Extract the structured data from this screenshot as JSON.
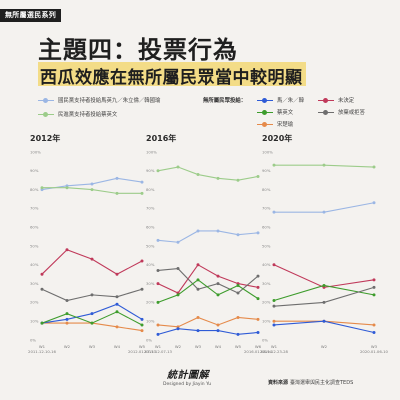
{
  "header": {
    "series_tag": "無所屬選民系列",
    "title": "主題四：投票行為",
    "subtitle": "西瓜效應在無所屬民眾當中較明顯"
  },
  "legend": {
    "left": [
      {
        "label": "國民黨支持者投給馬英九／朱立倫／韓國瑜",
        "color": "#9bb6e4"
      },
      {
        "label": "民進黨支持者投給蔡英文",
        "color": "#9ccc8a"
      }
    ],
    "right_title": "無所屬民眾投給：",
    "right": [
      {
        "label": "馬／朱／韓",
        "color": "#2f5bd6"
      },
      {
        "label": "未決定",
        "color": "#c0395a"
      },
      {
        "label": "蔡英文",
        "color": "#3d9c2c"
      },
      {
        "label": "放棄或拒答",
        "color": "#6e6e6e"
      },
      {
        "label": "宋楚瑜",
        "color": "#e58a4a"
      }
    ]
  },
  "chart_data": [
    {
      "type": "line",
      "title": "2012年",
      "x": [
        "W1",
        "W2",
        "W3",
        "W4",
        "W5"
      ],
      "x_sublabels": [
        "2011.12.10-16",
        "",
        "",
        "",
        "2012.01.07-13"
      ],
      "ylim": [
        0,
        100
      ],
      "yticks": [
        "0%",
        "10%",
        "20%",
        "30%",
        "40%",
        "50%",
        "60%",
        "70%",
        "80%",
        "90%",
        "100%"
      ],
      "grid": false,
      "series": [
        {
          "name": "國民黨支持者投給馬英九／朱立倫／韓國瑜",
          "color": "#9bb6e4",
          "values": [
            80,
            82,
            83,
            86,
            84
          ]
        },
        {
          "name": "民進黨支持者投給蔡英文",
          "color": "#9ccc8a",
          "values": [
            81,
            81,
            80,
            78,
            78
          ]
        },
        {
          "name": "未決定",
          "color": "#c0395a",
          "values": [
            35,
            48,
            43,
            35,
            42
          ]
        },
        {
          "name": "放棄或拒答",
          "color": "#6e6e6e",
          "values": [
            27,
            21,
            24,
            23,
            27
          ]
        },
        {
          "name": "宋楚瑜",
          "color": "#e58a4a",
          "values": [
            9,
            9,
            9,
            7,
            5
          ]
        },
        {
          "name": "馬／朱／韓",
          "color": "#2f5bd6",
          "values": [
            9,
            11,
            14,
            19,
            11
          ]
        },
        {
          "name": "蔡英文",
          "color": "#3d9c2c",
          "values": [
            9,
            14,
            9,
            15,
            8
          ]
        }
      ]
    },
    {
      "type": "line",
      "title": "2016年",
      "x": [
        "W1",
        "W2",
        "W3",
        "W4",
        "W5",
        "W6"
      ],
      "x_sublabels": [
        "2015.12.07-13",
        "",
        "",
        "",
        "",
        "2016.01.08-14"
      ],
      "ylim": [
        0,
        100
      ],
      "yticks": [
        "0%",
        "10%",
        "20%",
        "30%",
        "40%",
        "50%",
        "60%",
        "70%",
        "80%",
        "90%",
        "100%"
      ],
      "grid": false,
      "series": [
        {
          "name": "民進黨支持者投給蔡英文",
          "color": "#9ccc8a",
          "values": [
            90,
            92,
            88,
            86,
            85,
            87
          ]
        },
        {
          "name": "國民黨支持者投給馬英九／朱立倫／韓國瑜",
          "color": "#9bb6e4",
          "values": [
            53,
            52,
            58,
            58,
            56,
            57
          ]
        },
        {
          "name": "未決定",
          "color": "#c0395a",
          "values": [
            30,
            25,
            40,
            34,
            30,
            28
          ]
        },
        {
          "name": "放棄或拒答",
          "color": "#6e6e6e",
          "values": [
            37,
            38,
            27,
            30,
            25,
            34
          ]
        },
        {
          "name": "蔡英文",
          "color": "#3d9c2c",
          "values": [
            20,
            24,
            32,
            24,
            29,
            22
          ]
        },
        {
          "name": "宋楚瑜",
          "color": "#e58a4a",
          "values": [
            8,
            7,
            12,
            8,
            12,
            11
          ]
        },
        {
          "name": "馬／朱／韓",
          "color": "#2f5bd6",
          "values": [
            3,
            6,
            5,
            5,
            3,
            4
          ]
        }
      ]
    },
    {
      "type": "line",
      "title": "2020年",
      "x": [
        "W1",
        "W2",
        "W3"
      ],
      "x_sublabels": [
        "2019.12.23-28",
        "",
        "2020.01.06-10"
      ],
      "ylim": [
        0,
        100
      ],
      "yticks": [
        "0%",
        "10%",
        "20%",
        "30%",
        "40%",
        "50%",
        "60%",
        "70%",
        "80%",
        "90%",
        "100%"
      ],
      "grid": false,
      "series": [
        {
          "name": "民進黨支持者投給蔡英文",
          "color": "#9ccc8a",
          "values": [
            93,
            93,
            92
          ]
        },
        {
          "name": "國民黨支持者投給馬英九／朱立倫／韓國瑜",
          "color": "#9bb6e4",
          "values": [
            68,
            68,
            73
          ]
        },
        {
          "name": "未決定",
          "color": "#c0395a",
          "values": [
            40,
            28,
            32
          ]
        },
        {
          "name": "蔡英文",
          "color": "#3d9c2c",
          "values": [
            21,
            29,
            24
          ]
        },
        {
          "name": "放棄或拒答",
          "color": "#6e6e6e",
          "values": [
            18,
            20,
            28
          ]
        },
        {
          "name": "宋楚瑜",
          "color": "#e58a4a",
          "values": [
            10,
            10,
            8
          ]
        },
        {
          "name": "馬／朱／韓",
          "color": "#2f5bd6",
          "values": [
            8,
            10,
            4
          ]
        }
      ]
    }
  ],
  "footer": {
    "logo": "統計圖解",
    "designed_by": "Designed by Jiayin Yu",
    "source_label": "資料來源",
    "source": "臺灣選舉與民主化調查TEDS"
  }
}
